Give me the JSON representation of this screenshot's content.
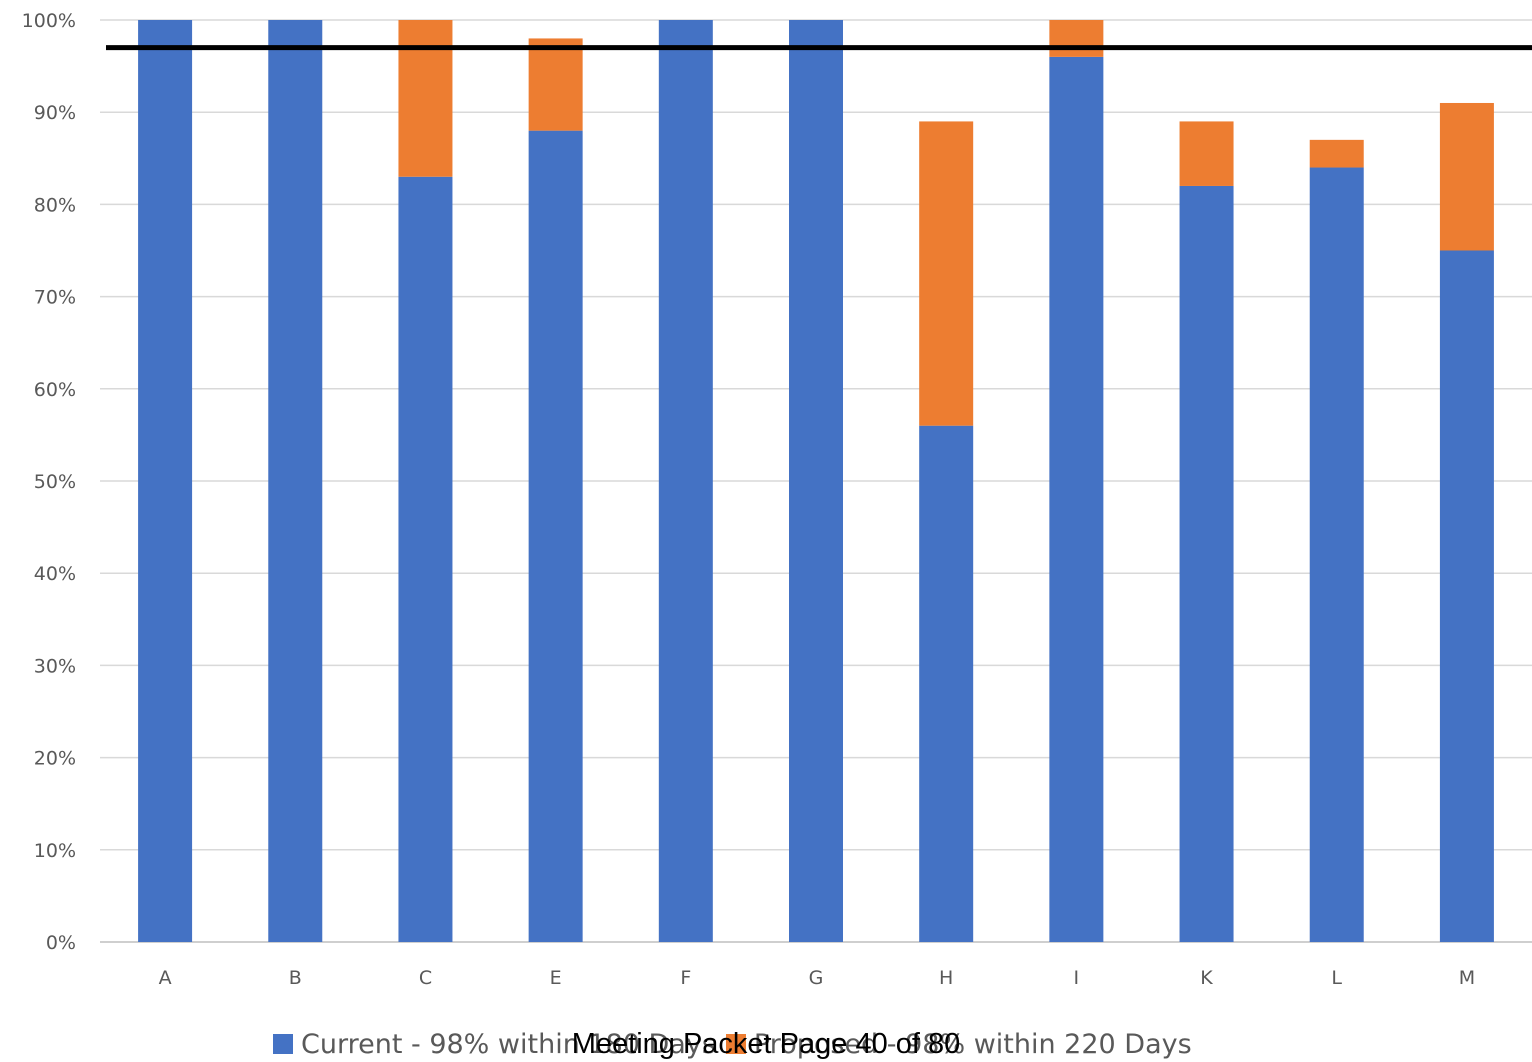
{
  "chart_data": {
    "type": "bar",
    "stacked": true,
    "categories": [
      "A",
      "B",
      "C",
      "E",
      "F",
      "G",
      "H",
      "I",
      "K",
      "L",
      "M"
    ],
    "series": [
      {
        "name": "Current - 98% within 180 Days",
        "color": "#4472C4",
        "values": [
          100,
          100,
          83,
          88,
          100,
          100,
          56,
          96,
          82,
          84,
          75
        ]
      },
      {
        "name": "Proposed - 98% within 220 Days",
        "color": "#ED7D31",
        "values": [
          0,
          0,
          17,
          10,
          0,
          0,
          33,
          4,
          7,
          3,
          16
        ]
      }
    ],
    "reference_line": {
      "value": 97,
      "color": "#000000"
    },
    "ylim": [
      0,
      100
    ],
    "yticks": [
      "0%",
      "10%",
      "20%",
      "30%",
      "40%",
      "50%",
      "60%",
      "70%",
      "80%",
      "90%",
      "100%"
    ],
    "grid": true,
    "legend_position": "bottom"
  },
  "legend": {
    "current": "Current - 98% within 180 Days",
    "proposed": "Proposed - 98% within 220 Days"
  },
  "footer": {
    "text": "Meeting Packet Page 40 of 80"
  }
}
